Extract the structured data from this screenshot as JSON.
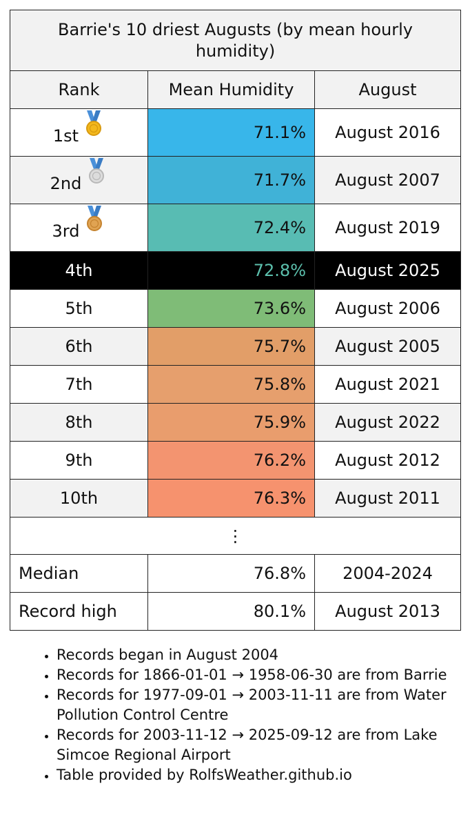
{
  "chart_data": {
    "type": "table",
    "title": "Barrie's 10 driest Augusts (by mean hourly humidity)",
    "columns": [
      "Rank",
      "Mean Humidity",
      "August"
    ],
    "rows": [
      {
        "rank": "1st",
        "medal": "gold-medal",
        "value": "71.1%",
        "humidity": 71.1,
        "august": "August 2016",
        "color": "#38b6ea"
      },
      {
        "rank": "2nd",
        "medal": "silver-medal",
        "value": "71.7%",
        "humidity": 71.7,
        "august": "August 2007",
        "color": "#40b2d7"
      },
      {
        "rank": "3rd",
        "medal": "bronze-medal",
        "value": "72.4%",
        "humidity": 72.4,
        "august": "August 2019",
        "color": "#58bcb3"
      },
      {
        "rank": "4th",
        "medal": "",
        "value": "72.8%",
        "humidity": 72.8,
        "august": "August 2025",
        "color": "#5cc0ad",
        "highlight": true
      },
      {
        "rank": "5th",
        "medal": "",
        "value": "73.6%",
        "humidity": 73.6,
        "august": "August 2006",
        "color": "#7fbc77"
      },
      {
        "rank": "6th",
        "medal": "",
        "value": "75.7%",
        "humidity": 75.7,
        "august": "August 2005",
        "color": "#e29e68"
      },
      {
        "rank": "7th",
        "medal": "",
        "value": "75.8%",
        "humidity": 75.8,
        "august": "August 2021",
        "color": "#e69f6d"
      },
      {
        "rank": "8th",
        "medal": "",
        "value": "75.9%",
        "humidity": 75.9,
        "august": "August 2022",
        "color": "#e99d6d"
      },
      {
        "rank": "9th",
        "medal": "",
        "value": "76.2%",
        "humidity": 76.2,
        "august": "August 2012",
        "color": "#f39470"
      },
      {
        "rank": "10th",
        "medal": "",
        "value": "76.3%",
        "humidity": 76.3,
        "august": "August 2011",
        "color": "#f6926e"
      }
    ],
    "ellipsis": "⋮",
    "stats": [
      {
        "label": "Median",
        "value": "76.8%",
        "august": "2004-2024"
      },
      {
        "label": "Record high",
        "value": "80.1%",
        "august": "August 2013"
      }
    ]
  },
  "notes": [
    "Records began in August 2004",
    "Records for 1866-01-01 → 1958-06-30 are from Barrie",
    "Records for 1977-09-01 → 2003-11-11 are from Water Pollution Control Centre",
    "Records for 2003-11-12 → 2025-09-12 are from Lake Simcoe Regional Airport",
    "Table provided by RolfsWeather.github.io"
  ]
}
